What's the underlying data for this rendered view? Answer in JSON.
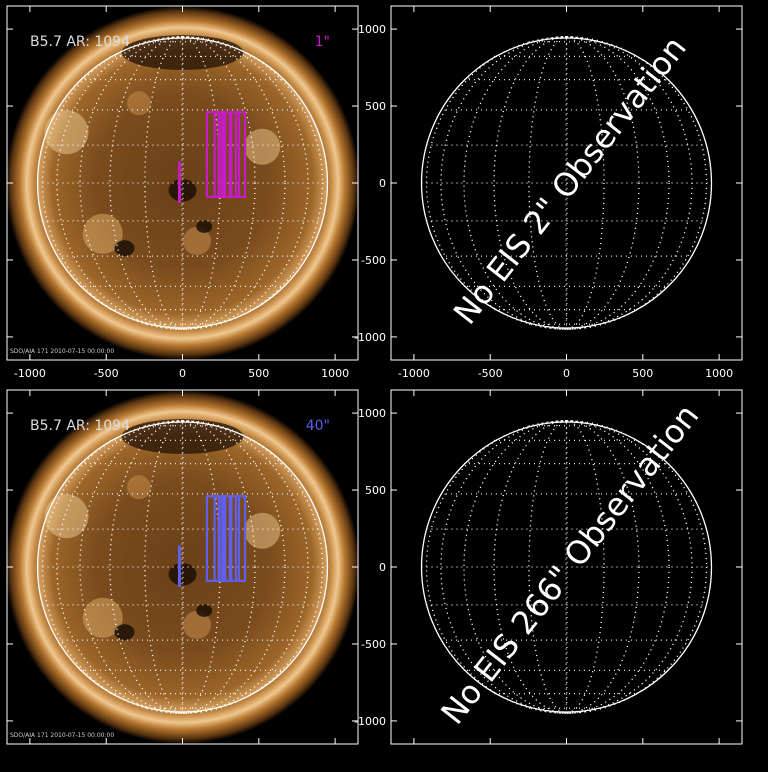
{
  "panels": [
    {
      "kind": "image",
      "header_left": "B5.7  AR: 1094",
      "header_right": "1\"",
      "overlay_color": "#c71bc7",
      "footer": "SDO/AIA 171 2010-07-15 00:00:00",
      "x_ticks": [
        "-1000",
        "-500",
        "0",
        "500",
        "1000"
      ],
      "y_ticks": []
    },
    {
      "kind": "empty",
      "message": "No EIS 2\" Observation",
      "x_ticks": [
        "-1000",
        "-500",
        "0",
        "500",
        "1000"
      ],
      "y_ticks": [
        "1000",
        "500",
        "0",
        "-500",
        "-1000"
      ]
    },
    {
      "kind": "image",
      "header_left": "B5.7  AR: 1094",
      "header_right": "40\"",
      "overlay_color": "#5f5ff0",
      "footer": "SDO/AIA 171 2010-07-15 00:00:00",
      "x_ticks": [],
      "y_ticks": []
    },
    {
      "kind": "empty",
      "message": "No EIS 266\" Observation",
      "x_ticks": [],
      "y_ticks": [
        "1000",
        "500",
        "0",
        "-500",
        "-1000"
      ]
    }
  ],
  "colors": {
    "background": "#000000",
    "axis": "#ffffff"
  }
}
